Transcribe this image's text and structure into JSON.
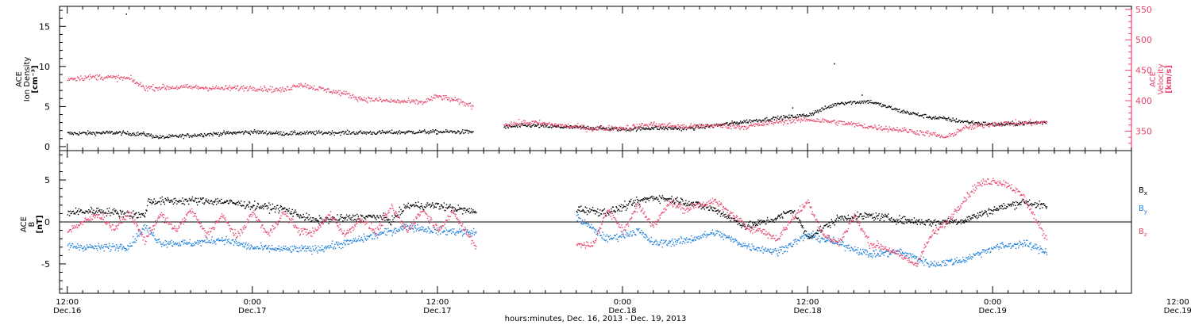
{
  "chart_data": [
    {
      "type": "scatter",
      "panel": "top",
      "ylabel_left": [
        "ACE",
        "Ion Density",
        "[cm⁻³]"
      ],
      "ylabel_right": [
        "ACE",
        "Velocity",
        "[km/s]"
      ],
      "ylim_left": [
        -0.5,
        17.5
      ],
      "ylim_right": [
        318,
        555
      ],
      "yticks_left": [
        0,
        5,
        10,
        15
      ],
      "yticks_right": [
        350,
        400,
        450,
        500,
        550
      ],
      "right_axis_color": "#e8456b",
      "series": [
        {
          "axis": "left",
          "color": "#000000",
          "segments": [
            {
              "x0": 0,
              "x1": 26.3,
              "points": [
                [
                  0,
                  1.7
                ],
                [
                  3,
                  1.8
                ],
                [
                  5,
                  1.6
                ],
                [
                  6,
                  1.2
                ],
                [
                  9,
                  1.6
                ],
                [
                  12,
                  1.9
                ],
                [
                  14,
                  1.7
                ],
                [
                  17,
                  1.8
                ],
                [
                  20,
                  1.8
                ],
                [
                  23,
                  1.9
                ],
                [
                  26.3,
                  1.9
                ]
              ]
            },
            {
              "x0": 28.3,
              "x1": 36.1,
              "points": [
                [
                  28.3,
                  2.5
                ],
                [
                  30,
                  2.7
                ],
                [
                  32,
                  2.5
                ],
                [
                  34,
                  2.4
                ],
                [
                  36.1,
                  2.2
                ]
              ]
            },
            {
              "x0": 36.1,
              "x1": 63.5,
              "points": [
                [
                  36.1,
                  2.2
                ],
                [
                  38,
                  2.4
                ],
                [
                  40,
                  2.3
                ],
                [
                  42,
                  2.7
                ],
                [
                  44,
                  3.2
                ],
                [
                  46,
                  3.6
                ],
                [
                  48,
                  4.0
                ],
                [
                  50,
                  5.5
                ],
                [
                  52,
                  5.7
                ],
                [
                  54,
                  4.5
                ],
                [
                  56,
                  3.7
                ],
                [
                  57,
                  3.5
                ],
                [
                  58,
                  3.2
                ],
                [
                  60,
                  2.8
                ],
                [
                  63.5,
                  3.1
                ]
              ]
            }
          ],
          "outliers": [
            [
              3.8,
              16.6
            ],
            [
              49.7,
              10.4
            ],
            [
              47,
              4.9
            ],
            [
              51.5,
              6.5
            ]
          ]
        },
        {
          "axis": "right",
          "color": "#e8456b",
          "segments": [
            {
              "x0": 0,
              "x1": 26.3,
              "points": [
                [
                  0,
                  437
                ],
                [
                  2,
                  440
                ],
                [
                  4,
                  437
                ],
                [
                  5,
                  422
                ],
                [
                  8,
                  423
                ],
                [
                  10,
                  421
                ],
                [
                  12,
                  422
                ],
                [
                  14,
                  418
                ],
                [
                  15,
                  428
                ],
                [
                  16,
                  422
                ],
                [
                  18,
                  412
                ],
                [
                  19,
                  404
                ],
                [
                  21,
                  400
                ],
                [
                  23,
                  398
                ],
                [
                  24,
                  408
                ],
                [
                  25,
                  402
                ],
                [
                  26.3,
                  392
                ]
              ]
            },
            {
              "x0": 28.3,
              "x1": 63.5,
              "points": [
                [
                  28.3,
                  362
                ],
                [
                  30,
                  365
                ],
                [
                  32,
                  360
                ],
                [
                  34,
                  355
                ],
                [
                  36,
                  356
                ],
                [
                  38,
                  362
                ],
                [
                  40,
                  358
                ],
                [
                  42,
                  360
                ],
                [
                  44,
                  358
                ],
                [
                  46,
                  366
                ],
                [
                  48,
                  370
                ],
                [
                  50,
                  365
                ],
                [
                  52,
                  358
                ],
                [
                  54,
                  353
                ],
                [
                  56,
                  346
                ],
                [
                  57,
                  340
                ],
                [
                  58,
                  355
                ],
                [
                  60,
                  363
                ],
                [
                  63.5,
                  365
                ]
              ]
            }
          ]
        }
      ]
    },
    {
      "type": "scatter",
      "panel": "bottom",
      "ylabel_left": [
        "ACE",
        "B",
        "[nT]"
      ],
      "ylim": [
        -8.5,
        8.5
      ],
      "yticks": [
        -5,
        0,
        5
      ],
      "zero_line": true,
      "series": [
        {
          "name": "B",
          "subscript": "x",
          "color": "#000000",
          "segments": [
            {
              "x0": 0,
              "x1": 26.5,
              "points": [
                [
                  0,
                  1.2
                ],
                [
                  2,
                  1.4
                ],
                [
                  4,
                  1.0
                ],
                [
                  5,
                  0.8
                ],
                [
                  5.2,
                  2.5
                ],
                [
                  8,
                  2.6
                ],
                [
                  10,
                  2.5
                ],
                [
                  12,
                  2.0
                ],
                [
                  14,
                  1.6
                ],
                [
                  16,
                  0.2
                ],
                [
                  18,
                  0.5
                ],
                [
                  20,
                  0.7
                ],
                [
                  21,
                  0.2
                ],
                [
                  22,
                  2.0
                ],
                [
                  24,
                  2.0
                ],
                [
                  26.5,
                  1.2
                ]
              ]
            },
            {
              "x0": 33,
              "x1": 63.5,
              "points": [
                [
                  33,
                  1.6
                ],
                [
                  35,
                  1.2
                ],
                [
                  37,
                  2.5
                ],
                [
                  38,
                  3.0
                ],
                [
                  40,
                  2.5
                ],
                [
                  42,
                  1.5
                ],
                [
                  44,
                  -0.5
                ],
                [
                  46,
                  0.5
                ],
                [
                  47,
                  1.5
                ],
                [
                  48,
                  -1.8
                ],
                [
                  50,
                  0.5
                ],
                [
                  52,
                  0.8
                ],
                [
                  54,
                  0.3
                ],
                [
                  56,
                  0
                ],
                [
                  58,
                  0.2
                ],
                [
                  60,
                  1.5
                ],
                [
                  62,
                  2.5
                ],
                [
                  63.5,
                  1.8
                ]
              ]
            }
          ]
        },
        {
          "name": "B",
          "subscript": "y",
          "color": "#1c7fdc",
          "segments": [
            {
              "x0": 0,
              "x1": 26.5,
              "points": [
                [
                  0,
                  -2.8
                ],
                [
                  2,
                  -3.0
                ],
                [
                  4,
                  -2.8
                ],
                [
                  5,
                  -0.5
                ],
                [
                  6,
                  -2.4
                ],
                [
                  8,
                  -2.5
                ],
                [
                  10,
                  -2.0
                ],
                [
                  12,
                  -3.0
                ],
                [
                  14,
                  -3.2
                ],
                [
                  16,
                  -3.2
                ],
                [
                  18,
                  -2.5
                ],
                [
                  20,
                  -1.5
                ],
                [
                  22,
                  -0.5
                ],
                [
                  24,
                  -1.0
                ],
                [
                  26.5,
                  -1.2
                ]
              ]
            },
            {
              "x0": 33,
              "x1": 63.5,
              "points": [
                [
                  33,
                  0.6
                ],
                [
                  35,
                  -2.0
                ],
                [
                  37,
                  -1.0
                ],
                [
                  38,
                  -2.5
                ],
                [
                  40,
                  -2.2
                ],
                [
                  42,
                  -1.2
                ],
                [
                  44,
                  -2.8
                ],
                [
                  46,
                  -3.5
                ],
                [
                  48,
                  -1.5
                ],
                [
                  50,
                  -2.5
                ],
                [
                  52,
                  -3.8
                ],
                [
                  54,
                  -3.5
                ],
                [
                  56,
                  -5.0
                ],
                [
                  58,
                  -4.5
                ],
                [
                  60,
                  -3.0
                ],
                [
                  62,
                  -2.5
                ],
                [
                  63.5,
                  -3.5
                ]
              ]
            }
          ]
        },
        {
          "name": "B",
          "subscript": "z",
          "color": "#e8456b",
          "segments": [
            {
              "x0": 0,
              "x1": 26.5,
              "points": [
                [
                  0,
                  -1.0
                ],
                [
                  2,
                  1.0
                ],
                [
                  3,
                  -0.8
                ],
                [
                  4,
                  1.2
                ],
                [
                  5,
                  -2.2
                ],
                [
                  6,
                  1.0
                ],
                [
                  7,
                  -1.0
                ],
                [
                  8,
                  1.5
                ],
                [
                  9,
                  -1.5
                ],
                [
                  10,
                  0.8
                ],
                [
                  11,
                  -1.8
                ],
                [
                  12,
                  1.2
                ],
                [
                  13,
                  -1.5
                ],
                [
                  14,
                  1.2
                ],
                [
                  15,
                  -1.0
                ],
                [
                  16,
                  -1.2
                ],
                [
                  17,
                  1.0
                ],
                [
                  18,
                  -1.5
                ],
                [
                  19,
                  0.5
                ],
                [
                  20,
                  -1.2
                ],
                [
                  21,
                  1.8
                ],
                [
                  22,
                  -1.0
                ],
                [
                  23,
                  1.5
                ],
                [
                  24,
                  -0.8
                ],
                [
                  25,
                  1.2
                ],
                [
                  26.5,
                  -3.0
                ]
              ]
            },
            {
              "x0": 33,
              "x1": 63.5,
              "points": [
                [
                  33,
                  -2.5
                ],
                [
                  34,
                  -2.8
                ],
                [
                  35,
                  1.5
                ],
                [
                  36,
                  -1.0
                ],
                [
                  37,
                  2.0
                ],
                [
                  38,
                  -0.5
                ],
                [
                  39,
                  2.5
                ],
                [
                  40,
                  1.5
                ],
                [
                  41,
                  2.2
                ],
                [
                  42,
                  2.5
                ],
                [
                  43,
                  1.0
                ],
                [
                  44,
                  -0.5
                ],
                [
                  45,
                  -1.0
                ],
                [
                  46,
                  -2.0
                ],
                [
                  47,
                  0.5
                ],
                [
                  48,
                  2.5
                ],
                [
                  49,
                  -1.5
                ],
                [
                  50,
                  -2.5
                ],
                [
                  51,
                  0.8
                ],
                [
                  52,
                  -2.5
                ],
                [
                  53,
                  -3.0
                ],
                [
                  54,
                  -4.0
                ],
                [
                  55,
                  -5.0
                ],
                [
                  56,
                  -1.5
                ],
                [
                  57,
                  0
                ],
                [
                  58,
                  2.5
                ],
                [
                  59,
                  4.5
                ],
                [
                  60,
                  5.0
                ],
                [
                  61,
                  4.5
                ],
                [
                  62,
                  3.0
                ],
                [
                  63,
                  -0.5
                ],
                [
                  63.5,
                  -2.0
                ]
              ]
            }
          ]
        }
      ]
    }
  ],
  "x_axis": {
    "range_hours": [
      -0.5,
      69
    ],
    "major_ticks": [
      {
        "x": 0,
        "time": "12:00",
        "day": "Dec.16"
      },
      {
        "x": 12,
        "time": "0:00",
        "day": "Dec.17"
      },
      {
        "x": 24,
        "time": "12:00",
        "day": "Dec.17"
      },
      {
        "x": 36,
        "time": "0:00",
        "day": "Dec.18"
      },
      {
        "x": 48,
        "time": "12:00",
        "day": "Dec.18"
      },
      {
        "x": 60,
        "time": "0:00",
        "day": "Dec.19"
      },
      {
        "x": 72,
        "time": "12:00",
        "day": "Dec.19"
      }
    ],
    "minor_step_hours": 1,
    "xlabel": "hours:minutes, Dec. 16, 2013 - Dec. 19, 2013"
  }
}
